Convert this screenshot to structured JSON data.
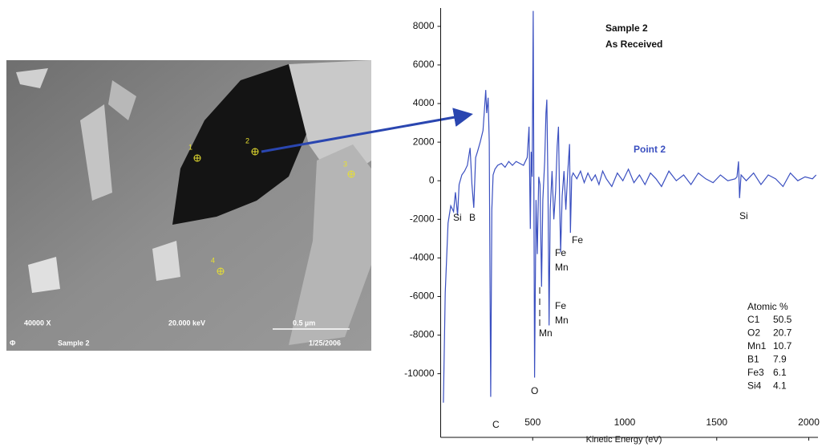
{
  "sem_image": {
    "magnification": "40000 X",
    "voltage": "20.000 keV",
    "scale": "0.5 µm",
    "logo": "Φ",
    "sample": "Sample 2",
    "date": "1/25/2006",
    "points": [
      "1",
      "2",
      "3",
      "4"
    ]
  },
  "chart_data": {
    "type": "line",
    "title": "Sample 2",
    "subtitle": "As Received",
    "x_label": "Kinetic Energy (eV)",
    "x": [
      15,
      25,
      40,
      55,
      70,
      80,
      92,
      100,
      115,
      130,
      145,
      160,
      170,
      180,
      190,
      200,
      215,
      230,
      240,
      245,
      250,
      258,
      264,
      268,
      272,
      278,
      285,
      295,
      310,
      330,
      350,
      370,
      390,
      410,
      430,
      450,
      470,
      480,
      487,
      492,
      497,
      503,
      510,
      518,
      525,
      533,
      540,
      548,
      555,
      565,
      572,
      577,
      583,
      589,
      595,
      605,
      615,
      625,
      633,
      640,
      646,
      652,
      660,
      670,
      680,
      690,
      700,
      705,
      712,
      720,
      740,
      760,
      780,
      800,
      820,
      840,
      860,
      880,
      900,
      930,
      960,
      990,
      1020,
      1050,
      1080,
      1110,
      1140,
      1170,
      1200,
      1240,
      1280,
      1320,
      1360,
      1400,
      1440,
      1480,
      1520,
      1560,
      1600,
      1610,
      1618,
      1624,
      1632,
      1660,
      1700,
      1740,
      1780,
      1820,
      1860,
      1900,
      1940,
      1980,
      2020,
      2040
    ],
    "series": [
      {
        "name": "Point 2",
        "color": "#3a4fc0",
        "values": [
          -11500,
          -5800,
          -2200,
          -1300,
          -1600,
          -600,
          -1800,
          -200,
          300,
          500,
          800,
          1700,
          -200,
          -1400,
          1200,
          1500,
          2000,
          2600,
          4000,
          4700,
          3500,
          4300,
          2000,
          -5000,
          -11200,
          -1500,
          300,
          600,
          800,
          900,
          700,
          1000,
          800,
          1000,
          900,
          800,
          1200,
          2800,
          -2500,
          1500,
          200,
          8800,
          -10200,
          -1000,
          -3800,
          200,
          -200,
          -5500,
          -1000,
          1000,
          3500,
          4200,
          -300,
          -7500,
          -1500,
          500,
          -2000,
          -500,
          1800,
          2800,
          -1000,
          -3700,
          -800,
          500,
          -1500,
          400,
          1900,
          -2700,
          200,
          400,
          100,
          500,
          -100,
          400,
          0,
          300,
          -200,
          500,
          100,
          -300,
          400,
          0,
          600,
          -100,
          300,
          -200,
          400,
          100,
          -300,
          500,
          0,
          300,
          -200,
          400,
          100,
          -100,
          300,
          0,
          100,
          200,
          1000,
          -900,
          300,
          0,
          400,
          -200,
          300,
          100,
          -300,
          400,
          0,
          200,
          100,
          300
        ]
      }
    ],
    "xlim": [
      0,
      2050
    ],
    "ylim": [
      -13300,
      8950
    ],
    "xticks": [
      500,
      1000,
      1500,
      2000
    ],
    "yticks": [
      -10000,
      -8000,
      -6000,
      -4000,
      -2000,
      0,
      2000,
      4000,
      6000,
      8000
    ],
    "annotations": [
      "Si",
      "B",
      "C",
      "O",
      "Fe",
      "Mn",
      "Fe",
      "Fe",
      "Mn",
      "Mn",
      "Si"
    ],
    "table": {
      "title": "Atomic %",
      "rows": [
        {
          "element": "C1",
          "value": 50.5
        },
        {
          "element": "O2",
          "value": 20.7
        },
        {
          "element": "Mn1",
          "value": 10.7
        },
        {
          "element": "B1",
          "value": 7.9
        },
        {
          "element": "Fe3",
          "value": 6.1
        },
        {
          "element": "Si4",
          "value": 4.1
        }
      ]
    }
  }
}
